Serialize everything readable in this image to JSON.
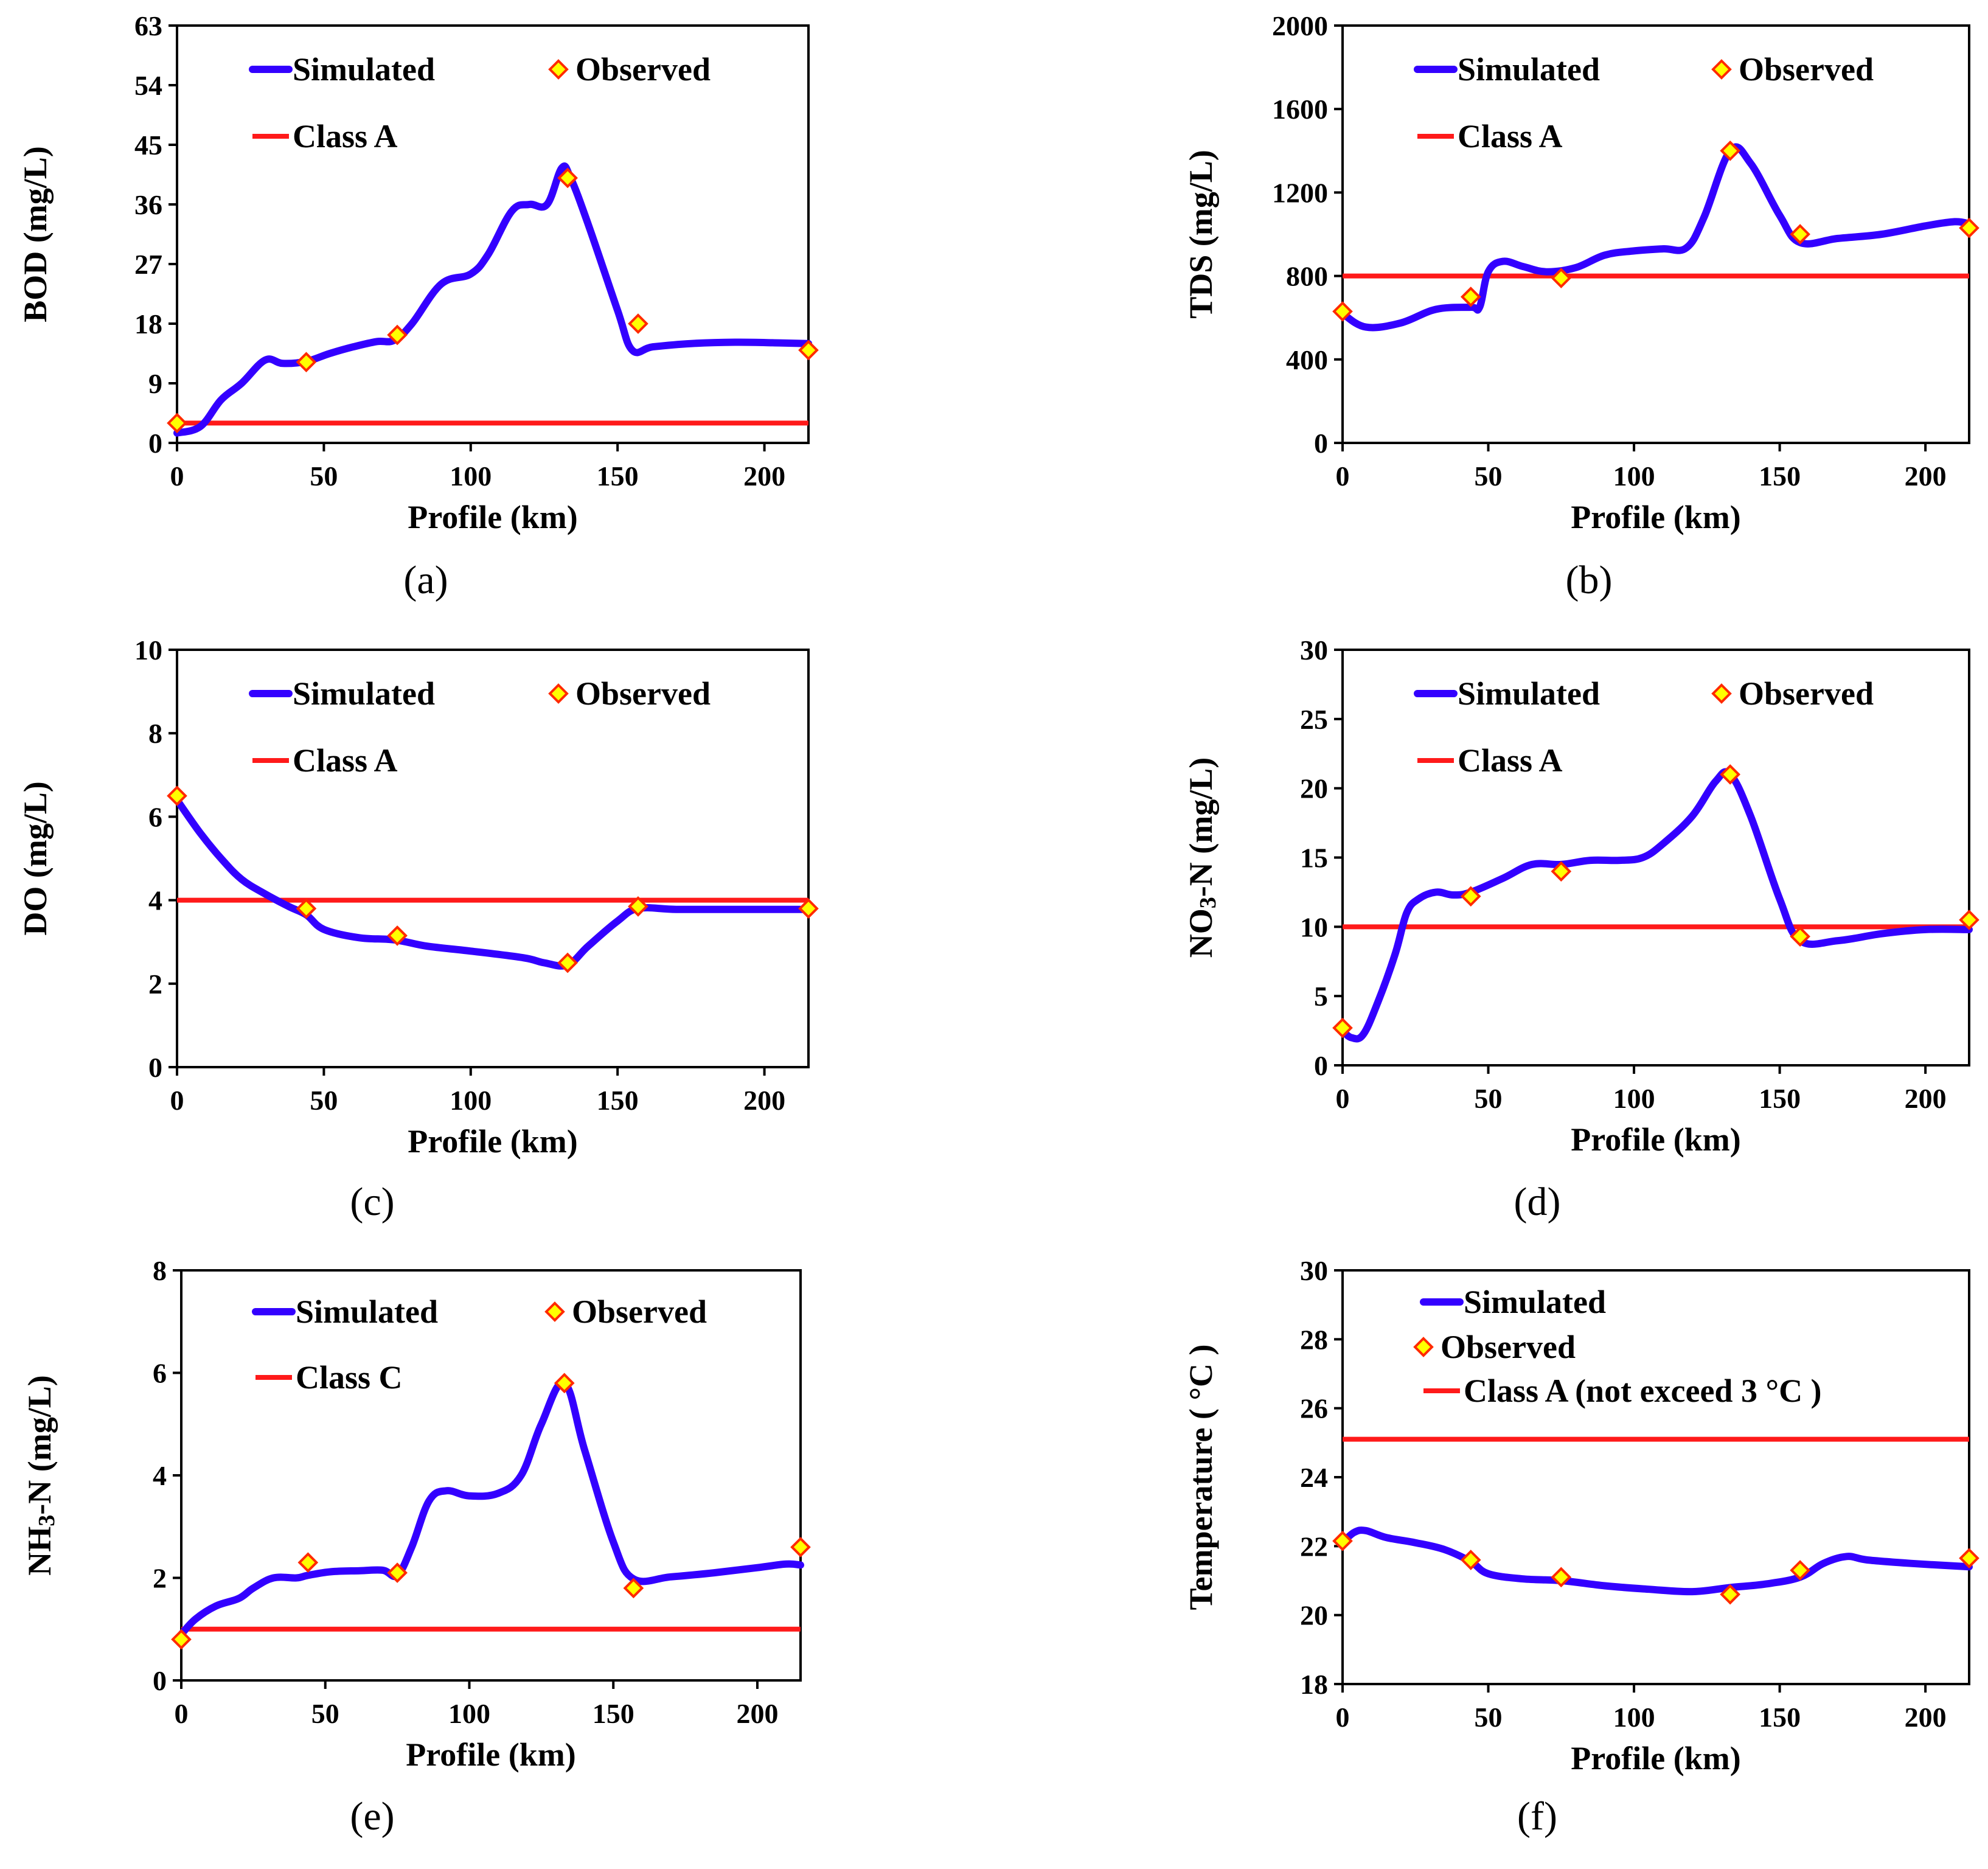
{
  "colors": {
    "simulated": "#3300FF",
    "observed_fill": "#FFFF00",
    "observed_stroke": "#FF2A00",
    "class_line": "#FF1A1A",
    "axis": "#000000"
  },
  "chart_data": [
    {
      "id": "a",
      "type": "line",
      "caption": "(a)",
      "xlabel": "Profile (km)",
      "ylabel": "BOD (mg/L)",
      "xlim": [
        0,
        215
      ],
      "ylim": [
        0,
        63
      ],
      "xticks": [
        0,
        50,
        100,
        150,
        200
      ],
      "yticks": [
        0,
        9,
        18,
        27,
        36,
        45,
        54,
        63
      ],
      "legend": {
        "simulated": "Simulated",
        "observed": "Observed",
        "threshold": "Class A"
      },
      "simulated": {
        "x": [
          0,
          8,
          15,
          22,
          30,
          36,
          44,
          52,
          60,
          68,
          74,
          80,
          90,
          100,
          106,
          114,
          120,
          126,
          131,
          134,
          140,
          150,
          155,
          162,
          175,
          190,
          205,
          215
        ],
        "y": [
          1.5,
          2.5,
          6.5,
          9,
          12.5,
          12,
          12.3,
          13.5,
          14.5,
          15.3,
          15.5,
          18,
          24,
          25.5,
          28.5,
          35,
          36,
          36,
          41.5,
          40,
          33,
          20,
          14,
          14.5,
          15,
          15.2,
          15.1,
          15
        ]
      },
      "observed": {
        "x": [
          0,
          44,
          75,
          133,
          157,
          215
        ],
        "y": [
          3,
          12.2,
          16.3,
          40,
          18,
          14
        ]
      },
      "threshold": 3
    },
    {
      "id": "b",
      "type": "line",
      "caption": "(b)",
      "xlabel": "Profile (km)",
      "ylabel": "TDS (mg/L)",
      "xlim": [
        0,
        215
      ],
      "ylim": [
        0,
        2000
      ],
      "xticks": [
        0,
        50,
        100,
        150,
        200
      ],
      "yticks": [
        0,
        400,
        800,
        1200,
        1600,
        2000
      ],
      "legend": {
        "simulated": "Simulated",
        "observed": "Observed",
        "threshold": "Class A"
      },
      "simulated": {
        "x": [
          0,
          8,
          20,
          32,
          44,
          47,
          50,
          55,
          62,
          70,
          80,
          90,
          100,
          110,
          118,
          124,
          133,
          140,
          150,
          157,
          170,
          185,
          200,
          210,
          215
        ],
        "y": [
          620,
          555,
          575,
          640,
          650,
          650,
          820,
          870,
          845,
          820,
          840,
          900,
          920,
          930,
          935,
          1080,
          1400,
          1340,
          1090,
          960,
          980,
          1000,
          1040,
          1060,
          1050
        ]
      },
      "observed": {
        "x": [
          0,
          44,
          75,
          133,
          157,
          215
        ],
        "y": [
          630,
          700,
          790,
          1400,
          1000,
          1030
        ]
      },
      "threshold": 800
    },
    {
      "id": "c",
      "type": "line",
      "caption": "(c)",
      "xlabel": "Profile (km)",
      "ylabel": "DO (mg/L)",
      "xlim": [
        0,
        215
      ],
      "ylim": [
        0,
        10
      ],
      "xticks": [
        0,
        50,
        100,
        150,
        200
      ],
      "yticks": [
        0,
        2,
        4,
        6,
        8,
        10
      ],
      "legend": {
        "simulated": "Simulated",
        "observed": "Observed",
        "threshold": "Class A"
      },
      "simulated": {
        "x": [
          0,
          8,
          15,
          22,
          30,
          38,
          44,
          50,
          62,
          74,
          85,
          100,
          118,
          125,
          133,
          140,
          150,
          157,
          170,
          190,
          215
        ],
        "y": [
          6.4,
          5.6,
          5.0,
          4.5,
          4.15,
          3.85,
          3.65,
          3.3,
          3.1,
          3.05,
          2.9,
          2.78,
          2.62,
          2.5,
          2.45,
          2.9,
          3.5,
          3.8,
          3.78,
          3.78,
          3.78
        ]
      },
      "observed": {
        "x": [
          0,
          44,
          75,
          133,
          157,
          215
        ],
        "y": [
          6.5,
          3.8,
          3.15,
          2.5,
          3.85,
          3.8
        ]
      },
      "threshold": 4
    },
    {
      "id": "d",
      "type": "line",
      "caption": "(d)",
      "xlabel": "Profile (km)",
      "ylabel": "NO₃-N (mg/L)",
      "xlim": [
        0,
        215
      ],
      "ylim": [
        0,
        30
      ],
      "xticks": [
        0,
        50,
        100,
        150,
        200
      ],
      "yticks": [
        0,
        5,
        10,
        15,
        20,
        25,
        30
      ],
      "legend": {
        "simulated": "Simulated",
        "observed": "Observed",
        "threshold": "Class A"
      },
      "simulated": {
        "x": [
          0,
          3,
          7,
          12,
          18,
          22,
          26,
          32,
          38,
          44,
          55,
          65,
          75,
          85,
          95,
          103,
          110,
          120,
          128,
          133,
          140,
          150,
          157,
          170,
          185,
          200,
          215
        ],
        "y": [
          2.5,
          2.0,
          2.2,
          4.5,
          8.0,
          11.0,
          12.0,
          12.5,
          12.3,
          12.5,
          13.5,
          14.5,
          14.5,
          14.8,
          14.8,
          15.0,
          16.0,
          18.0,
          20.5,
          21.0,
          18.0,
          12.0,
          9.0,
          9.0,
          9.5,
          9.8,
          9.8
        ]
      },
      "observed": {
        "x": [
          0,
          44,
          75,
          133,
          157,
          215
        ],
        "y": [
          2.7,
          12.2,
          14.0,
          21.0,
          9.3,
          10.5
        ]
      },
      "threshold": 10
    },
    {
      "id": "e",
      "type": "line",
      "caption": "(e)",
      "xlabel": "Profile (km)",
      "ylabel": "NH₃-N (mg/L)",
      "xlim": [
        0,
        215
      ],
      "ylim": [
        0,
        8
      ],
      "xticks": [
        0,
        50,
        100,
        150,
        200
      ],
      "yticks": [
        0,
        2,
        4,
        6,
        8
      ],
      "legend": {
        "simulated": "Simulated",
        "observed": "Observed",
        "threshold": "Class C"
      },
      "simulated": {
        "x": [
          0,
          5,
          12,
          20,
          25,
          32,
          40,
          44,
          52,
          62,
          70,
          75,
          80,
          86,
          92,
          100,
          110,
          118,
          125,
          133,
          140,
          150,
          157,
          170,
          185,
          200,
          210,
          215
        ],
        "y": [
          0.9,
          1.2,
          1.45,
          1.6,
          1.8,
          2.0,
          2.0,
          2.05,
          2.12,
          2.14,
          2.15,
          2.05,
          2.6,
          3.5,
          3.7,
          3.6,
          3.65,
          4.0,
          5.0,
          5.8,
          4.5,
          2.7,
          1.98,
          2.02,
          2.1,
          2.2,
          2.27,
          2.25
        ]
      },
      "observed": {
        "x": [
          0,
          44,
          75,
          133,
          157,
          215
        ],
        "y": [
          0.8,
          2.3,
          2.1,
          5.8,
          1.8,
          2.6
        ]
      },
      "threshold": 1
    },
    {
      "id": "f",
      "type": "line",
      "caption": "(f)",
      "xlabel": "Profile (km)",
      "ylabel": "Temperature ( °C )",
      "xlim": [
        0,
        215
      ],
      "ylim": [
        18,
        30
      ],
      "xticks": [
        0,
        50,
        100,
        150,
        200
      ],
      "yticks": [
        18,
        20,
        22,
        24,
        26,
        28,
        30
      ],
      "legend": {
        "simulated": "Simulated",
        "observed": "Observed",
        "threshold": "Class A (not exceed 3 °C )"
      },
      "simulated": {
        "x": [
          0,
          4,
          8,
          15,
          25,
          35,
          44,
          50,
          62,
          75,
          90,
          105,
          120,
          133,
          145,
          157,
          165,
          173,
          180,
          195,
          215
        ],
        "y": [
          22.1,
          22.4,
          22.45,
          22.25,
          22.1,
          21.9,
          21.55,
          21.2,
          21.05,
          21.0,
          20.85,
          20.75,
          20.68,
          20.8,
          20.9,
          21.1,
          21.5,
          21.7,
          21.6,
          21.5,
          21.4
        ]
      },
      "observed": {
        "x": [
          0,
          44,
          75,
          133,
          157,
          215
        ],
        "y": [
          22.15,
          21.6,
          21.1,
          20.6,
          21.3,
          21.65
        ]
      },
      "threshold": 25.1
    }
  ]
}
